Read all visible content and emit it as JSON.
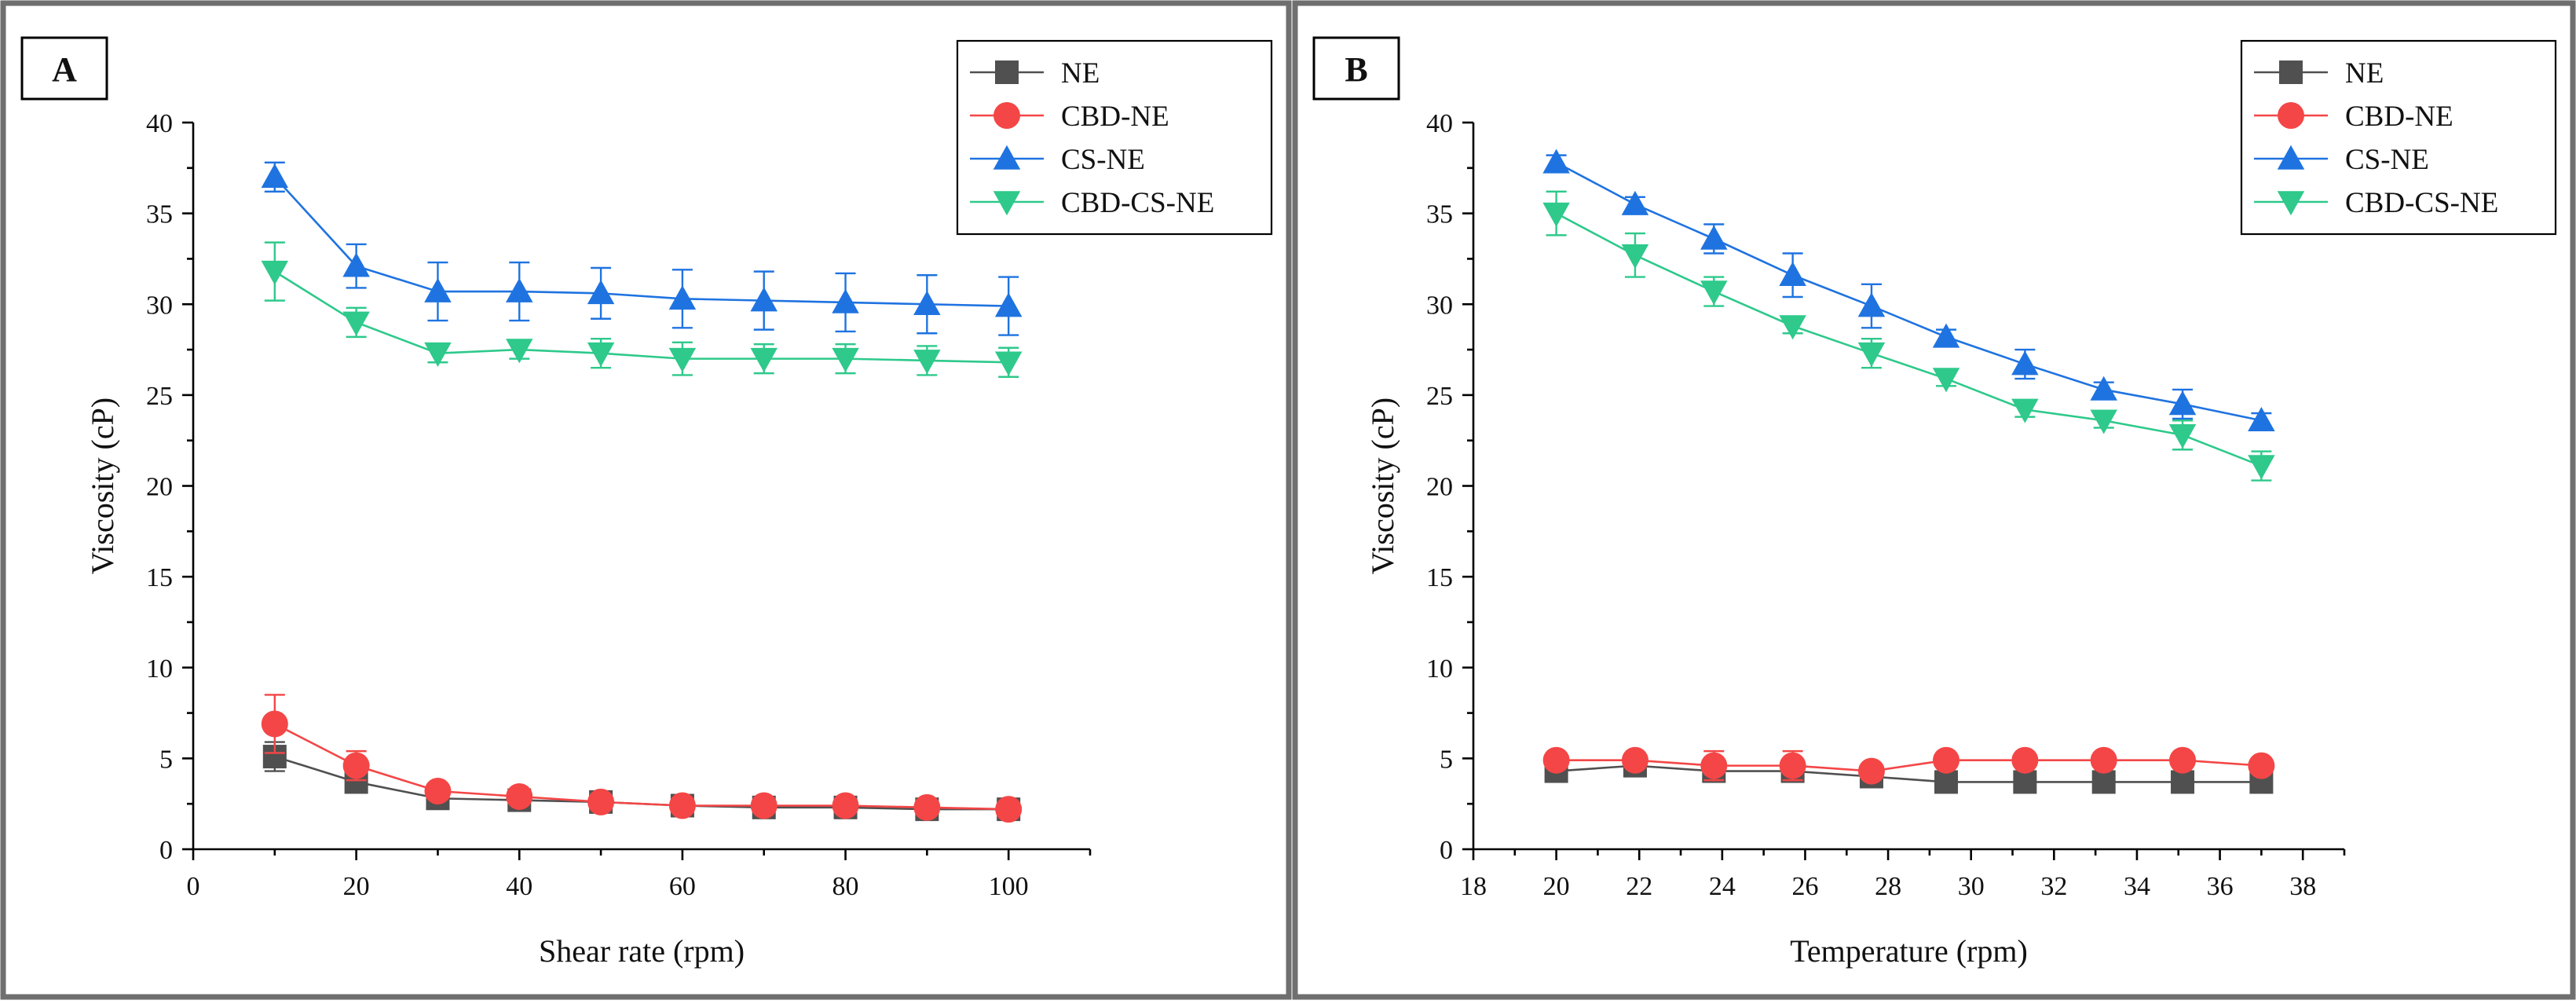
{
  "chart_data": [
    {
      "panel": "A",
      "type": "line",
      "xlabel": "Shear rate (rpm)",
      "ylabel": "Viscosity (cP)",
      "xlim": [
        0,
        110
      ],
      "ylim": [
        0,
        40
      ],
      "xticks": [
        0,
        20,
        40,
        60,
        80,
        100
      ],
      "yticks": [
        0,
        5,
        10,
        15,
        20,
        25,
        30,
        35,
        40
      ],
      "legend_position": "top-right",
      "x": [
        10,
        20,
        30,
        40,
        50,
        60,
        70,
        80,
        90,
        100
      ],
      "series": [
        {
          "name": "NE",
          "color": "#505050",
          "marker": "square",
          "values": [
            5.1,
            3.7,
            2.8,
            2.7,
            2.6,
            2.4,
            2.3,
            2.3,
            2.2,
            2.2
          ],
          "errors": [
            0.8,
            0.3,
            0.2,
            0.2,
            0.2,
            0.2,
            0.2,
            0.2,
            0.2,
            0.2
          ]
        },
        {
          "name": "CBD-NE",
          "color": "#f44646",
          "marker": "circle",
          "values": [
            6.9,
            4.6,
            3.2,
            2.9,
            2.6,
            2.4,
            2.4,
            2.4,
            2.3,
            2.2
          ],
          "errors": [
            1.6,
            0.8,
            0.4,
            0.3,
            0.3,
            0.2,
            0.2,
            0.2,
            0.2,
            0.2
          ]
        },
        {
          "name": "CS-NE",
          "color": "#1f73e0",
          "marker": "triangle-up",
          "values": [
            37.0,
            32.1,
            30.7,
            30.7,
            30.6,
            30.3,
            30.2,
            30.1,
            30.0,
            29.9
          ],
          "errors": [
            0.8,
            1.2,
            1.6,
            1.6,
            1.4,
            1.6,
            1.6,
            1.6,
            1.6,
            1.6
          ]
        },
        {
          "name": "CBD-CS-NE",
          "color": "#2ec98b",
          "marker": "triangle-down",
          "values": [
            31.8,
            29.0,
            27.3,
            27.5,
            27.3,
            27.0,
            27.0,
            27.0,
            26.9,
            26.8
          ],
          "errors": [
            1.6,
            0.8,
            0.5,
            0.5,
            0.8,
            0.9,
            0.8,
            0.8,
            0.8,
            0.8
          ]
        }
      ]
    },
    {
      "panel": "B",
      "type": "line",
      "xlabel": "Temperature (rpm)",
      "ylabel": "Viscosity (cP)",
      "xlim": [
        18,
        39
      ],
      "ylim": [
        0,
        40
      ],
      "xticks": [
        18,
        20,
        22,
        24,
        26,
        28,
        30,
        32,
        34,
        36,
        38
      ],
      "yticks": [
        0,
        5,
        10,
        15,
        20,
        25,
        30,
        35,
        40
      ],
      "legend_position": "top-right",
      "x": [
        20,
        21.9,
        23.8,
        25.7,
        27.6,
        29.4,
        31.3,
        33.2,
        35.1,
        37
      ],
      "series": [
        {
          "name": "NE",
          "color": "#505050",
          "marker": "square",
          "values": [
            4.3,
            4.6,
            4.3,
            4.3,
            4.0,
            3.7,
            3.7,
            3.7,
            3.7,
            3.7
          ],
          "errors": [
            0.3,
            0.3,
            0.3,
            0.3,
            0.2,
            0.1,
            0.1,
            0.1,
            0.1,
            0.1
          ]
        },
        {
          "name": "CBD-NE",
          "color": "#f44646",
          "marker": "circle",
          "values": [
            4.9,
            4.9,
            4.6,
            4.6,
            4.3,
            4.9,
            4.9,
            4.9,
            4.9,
            4.6
          ],
          "errors": [
            0.3,
            0.3,
            0.8,
            0.8,
            0.3,
            0.3,
            0.3,
            0.3,
            0.3,
            0.3
          ]
        },
        {
          "name": "CS-NE",
          "color": "#1f73e0",
          "marker": "triangle-up",
          "values": [
            37.8,
            35.5,
            33.6,
            31.6,
            29.9,
            28.2,
            26.7,
            25.3,
            24.5,
            23.6
          ],
          "errors": [
            0.4,
            0.4,
            0.8,
            1.2,
            1.2,
            0.4,
            0.8,
            0.4,
            0.8,
            0.4
          ]
        },
        {
          "name": "CBD-CS-NE",
          "color": "#2ec98b",
          "marker": "triangle-down",
          "values": [
            35.0,
            32.7,
            30.7,
            28.8,
            27.3,
            25.9,
            24.2,
            23.6,
            22.8,
            21.1
          ],
          "errors": [
            1.2,
            1.2,
            0.8,
            0.4,
            0.8,
            0.4,
            0.4,
            0.4,
            0.8,
            0.8
          ]
        }
      ]
    }
  ]
}
